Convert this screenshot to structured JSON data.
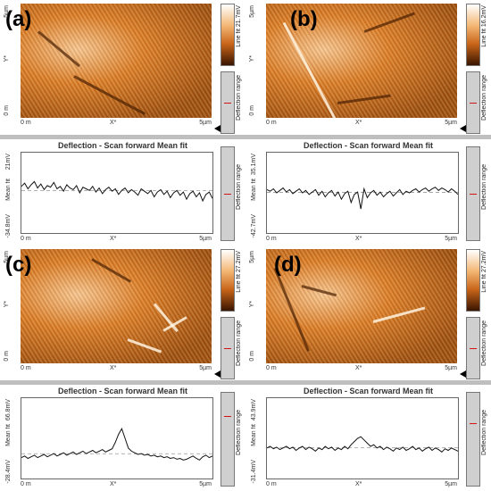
{
  "panels": [
    {
      "letter": "(a)",
      "y_top": "5µm",
      "y_mid": "Y*",
      "y_bot": "0 m",
      "x_left": "0 m",
      "x_mid": "X*",
      "x_right": "5µm",
      "colorbar_label": "Line fit 21.7mV",
      "range_label": "Deflection range",
      "profile_title": "Deflection - Scan forward   Mean fit",
      "profile_y_top": "21mV",
      "profile_y_mid": "Mean fit",
      "profile_y_bot": "-34.8mV",
      "profile_range_label": "Deflection range",
      "profile": [
        0.42,
        0.38,
        0.45,
        0.4,
        0.36,
        0.44,
        0.39,
        0.46,
        0.41,
        0.43,
        0.37,
        0.45,
        0.42,
        0.48,
        0.4,
        0.44,
        0.46,
        0.41,
        0.5,
        0.43,
        0.45,
        0.47,
        0.42,
        0.49,
        0.44,
        0.51,
        0.46,
        0.43,
        0.48,
        0.45,
        0.52,
        0.47,
        0.44,
        0.5,
        0.46,
        0.49,
        0.53,
        0.45,
        0.48,
        0.51,
        0.47,
        0.55,
        0.49,
        0.46,
        0.52,
        0.48,
        0.56,
        0.5,
        0.47,
        0.53,
        0.49,
        0.58,
        0.51,
        0.48,
        0.55,
        0.5,
        0.6,
        0.52,
        0.49,
        0.57
      ]
    },
    {
      "letter": "(b)",
      "y_top": "5µm",
      "y_mid": "Y*",
      "y_bot": "0 m",
      "x_left": "0 m",
      "x_mid": "X*",
      "x_right": "5µm",
      "colorbar_label": "Line fit 16.2mV",
      "range_label": "Deflection range",
      "profile_title": "Deflection - Scan forward   Mean fit",
      "profile_y_top": "35.1mV",
      "profile_y_mid": "Mean fit",
      "profile_y_bot": "-42.7mV",
      "profile_range_label": "Deflection range",
      "profile": [
        0.46,
        0.48,
        0.45,
        0.5,
        0.47,
        0.44,
        0.49,
        0.46,
        0.51,
        0.48,
        0.45,
        0.5,
        0.47,
        0.52,
        0.49,
        0.46,
        0.53,
        0.48,
        0.55,
        0.5,
        0.47,
        0.54,
        0.49,
        0.58,
        0.51,
        0.48,
        0.62,
        0.52,
        0.49,
        0.7,
        0.45,
        0.56,
        0.5,
        0.47,
        0.53,
        0.49,
        0.55,
        0.51,
        0.48,
        0.54,
        0.5,
        0.46,
        0.52,
        0.48,
        0.5,
        0.47,
        0.45,
        0.49,
        0.46,
        0.44,
        0.48,
        0.45,
        0.43,
        0.47,
        0.44,
        0.46,
        0.49,
        0.45,
        0.48,
        0.52
      ]
    },
    {
      "letter": "(c)",
      "y_top": "5µm",
      "y_mid": "Y*",
      "y_bot": "0 m",
      "x_left": "0 m",
      "x_mid": "X*",
      "x_right": "5µm",
      "colorbar_label": "Line fit 27.2mV",
      "range_label": "Deflection range",
      "profile_title": "Deflection - Scan forward   Mean fit",
      "profile_y_top": "66.8mV",
      "profile_y_mid": "Mean fit",
      "profile_y_bot": "-28.4mV",
      "profile_range_label": "Deflection range",
      "profile": [
        0.74,
        0.72,
        0.75,
        0.73,
        0.71,
        0.74,
        0.72,
        0.7,
        0.73,
        0.71,
        0.69,
        0.72,
        0.7,
        0.68,
        0.71,
        0.69,
        0.67,
        0.7,
        0.68,
        0.66,
        0.69,
        0.67,
        0.65,
        0.68,
        0.66,
        0.64,
        0.67,
        0.65,
        0.63,
        0.55,
        0.45,
        0.38,
        0.5,
        0.62,
        0.66,
        0.68,
        0.7,
        0.69,
        0.71,
        0.7,
        0.72,
        0.71,
        0.73,
        0.72,
        0.74,
        0.73,
        0.75,
        0.74,
        0.76,
        0.75,
        0.77,
        0.76,
        0.74,
        0.72,
        0.75,
        0.77,
        0.73,
        0.71,
        0.74,
        0.72
      ]
    },
    {
      "letter": "(d)",
      "y_top": "5µm",
      "y_mid": "Y*",
      "y_bot": "0 m",
      "x_left": "0 m",
      "x_mid": "X*",
      "x_right": "5µm",
      "colorbar_label": "Line fit 27.2mV",
      "range_label": "Deflection range",
      "profile_title": "Deflection - Scan forward   Mean fit",
      "profile_y_top": "43.9mV",
      "profile_y_mid": "Mean fit",
      "profile_y_bot": "-31.4mV",
      "profile_range_label": "Deflection range",
      "profile": [
        0.62,
        0.6,
        0.63,
        0.61,
        0.64,
        0.62,
        0.6,
        0.63,
        0.61,
        0.65,
        0.62,
        0.6,
        0.64,
        0.61,
        0.63,
        0.66,
        0.62,
        0.64,
        0.6,
        0.63,
        0.61,
        0.65,
        0.62,
        0.64,
        0.6,
        0.63,
        0.58,
        0.54,
        0.5,
        0.48,
        0.52,
        0.56,
        0.6,
        0.58,
        0.62,
        0.6,
        0.64,
        0.61,
        0.63,
        0.66,
        0.62,
        0.64,
        0.61,
        0.65,
        0.63,
        0.6,
        0.64,
        0.62,
        0.66,
        0.63,
        0.61,
        0.65,
        0.62,
        0.64,
        0.67,
        0.63,
        0.65,
        0.62,
        0.64,
        0.66
      ]
    }
  ]
}
